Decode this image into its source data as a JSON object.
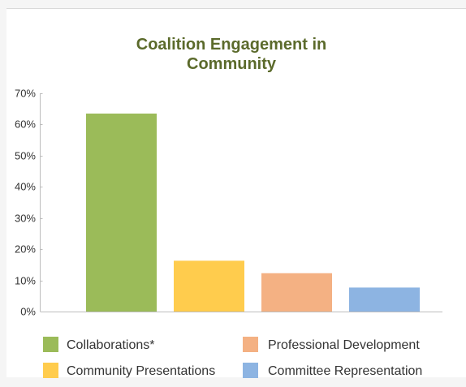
{
  "chart_data": {
    "type": "bar",
    "title": "Coalition Engagement in Community",
    "xlabel": "",
    "ylabel": "",
    "ylim": [
      0,
      70
    ],
    "yticks": [
      "0%",
      "10%",
      "20%",
      "30%",
      "40%",
      "50%",
      "60%",
      "70%"
    ],
    "grid": false,
    "legend_position": "bottom",
    "categories": [
      "Collaborations*",
      "Community Presentations",
      "Professional Development",
      "Committee Representation"
    ],
    "values": [
      63.5,
      16.3,
      12.3,
      7.7
    ],
    "colors": [
      "#9bbb59",
      "#ffcc4d",
      "#f4b183",
      "#8db4e2"
    ],
    "legend": {
      "items": [
        "Collaborations*",
        "Professional Development",
        "Community Presentations",
        "Committee Representation"
      ],
      "colors": [
        "#9bbb59",
        "#f4b183",
        "#ffcc4d",
        "#8db4e2"
      ]
    }
  }
}
